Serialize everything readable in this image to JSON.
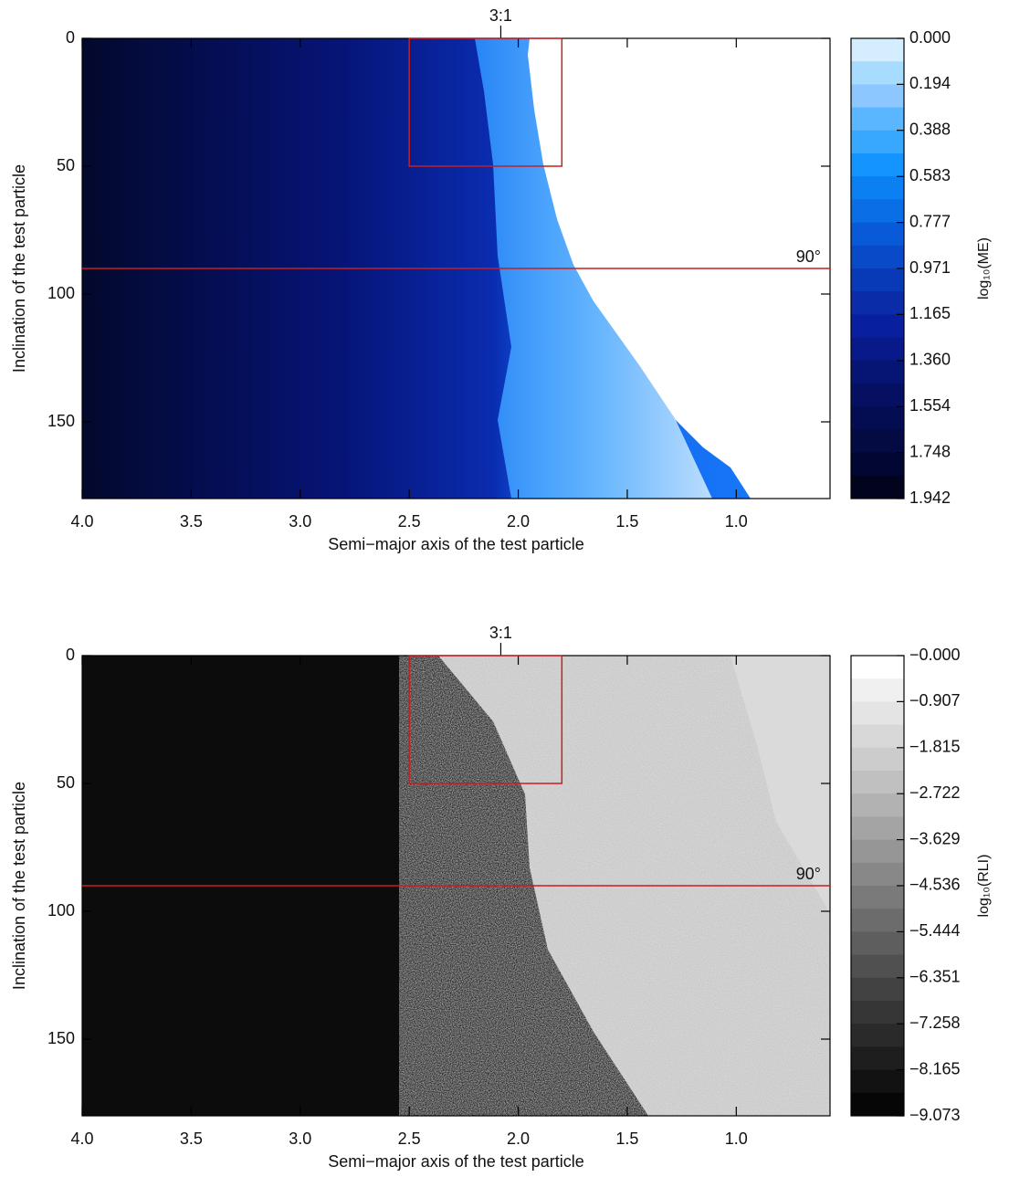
{
  "chart_data": [
    {
      "type": "heatmap",
      "x_label": "Semi−major axis of the test particle",
      "y_label": "Inclination of the test particle",
      "xlim": [
        4.0,
        0.57
      ],
      "ylim": [
        180,
        0
      ],
      "xticks": [
        {
          "value": 4,
          "label": "4.0"
        },
        3.5,
        {
          "value": 3,
          "label": "3.0"
        },
        2.5,
        {
          "value": 2,
          "label": "2.0"
        },
        1.5,
        {
          "value": 1,
          "label": "1.0"
        }
      ],
      "yticks": [
        0,
        50,
        100,
        150
      ],
      "annotation": {
        "text": "3:1",
        "x": 2.08
      },
      "hline": {
        "value": 90,
        "label": "90°",
        "color": "#c81e1e"
      },
      "box": {
        "x": [
          2.5,
          1.8
        ],
        "y": [
          0,
          50
        ],
        "color": "#c81e1e"
      },
      "colorbar": {
        "label": "log₁₀(ME)",
        "lim": [
          1.942,
          0
        ],
        "ticks": [
          {
            "value": 0,
            "label": "0.000"
          },
          0.194,
          0.388,
          0.583,
          0.777,
          0.971,
          1.165,
          {
            "value": 1.36,
            "label": "1.360"
          },
          1.554,
          1.748,
          1.942
        ],
        "colors": [
          "#d4eeff",
          "#a8dcff",
          "#8cc8ff",
          "#5ab6ff",
          "#38a8ff",
          "#1494ff",
          "#0a80f2",
          "#0a6ee4",
          "#085ad8",
          "#084ac8",
          "#083ab8",
          "#0a2ca8",
          "#0820a0",
          "#081a8a",
          "#061474",
          "#061062",
          "#040c52",
          "#040a42",
          "#020632",
          "#01041c"
        ]
      }
    },
    {
      "type": "heatmap",
      "x_label": "Semi−major axis of the test particle",
      "y_label": "Inclination of the test particle",
      "xlim": [
        4.0,
        0.57
      ],
      "ylim": [
        180,
        0
      ],
      "xticks": [
        {
          "value": 4,
          "label": "4.0"
        },
        3.5,
        {
          "value": 3,
          "label": "3.0"
        },
        2.5,
        {
          "value": 2,
          "label": "2.0"
        },
        1.5,
        {
          "value": 1,
          "label": "1.0"
        }
      ],
      "yticks": [
        0,
        50,
        100,
        150
      ],
      "annotation": {
        "text": "3:1",
        "x": 2.08
      },
      "hline": {
        "value": 90,
        "label": "90°",
        "color": "#c81e1e"
      },
      "box": {
        "x": [
          2.5,
          1.8
        ],
        "y": [
          0,
          50
        ],
        "color": "#c81e1e"
      },
      "colorbar": {
        "label": "log₁₀(RLI)",
        "lim": [
          -9.073,
          0
        ],
        "ticks": [
          {
            "value": 0,
            "label": "−0.000"
          },
          {
            "value": -0.907,
            "label": "−0.907"
          },
          {
            "value": -1.815,
            "label": "−1.815"
          },
          {
            "value": -2.722,
            "label": "−2.722"
          },
          {
            "value": -3.629,
            "label": "−3.629"
          },
          {
            "value": -4.536,
            "label": "−4.536"
          },
          {
            "value": -5.444,
            "label": "−5.444"
          },
          {
            "value": -6.351,
            "label": "−6.351"
          },
          {
            "value": -7.258,
            "label": "−7.258"
          },
          {
            "value": -8.165,
            "label": "−8.165"
          },
          {
            "value": -9.073,
            "label": "−9.073"
          }
        ],
        "colors": [
          "#ffffff",
          "#f0f0f0",
          "#e4e4e4",
          "#d8d8d8",
          "#cccccc",
          "#c0c0c0",
          "#b2b2b2",
          "#a4a4a4",
          "#969696",
          "#888888",
          "#7a7a7a",
          "#6c6c6c",
          "#5e5e5e",
          "#505050",
          "#424242",
          "#363636",
          "#2a2a2a",
          "#1e1e1e",
          "#121212",
          "#060606"
        ]
      }
    }
  ]
}
